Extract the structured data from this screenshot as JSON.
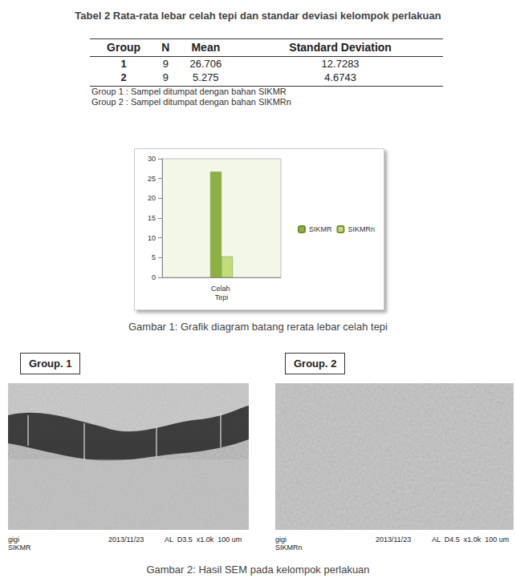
{
  "table_title": "Tabel 2  Rata-rata lebar celah tepi dan standar deviasi kelompok perlakuan",
  "table": {
    "header": [
      "Group",
      "N",
      "Mean",
      "Standard Deviation"
    ],
    "rows": [
      [
        1,
        9,
        26.706,
        12.7283
      ],
      [
        2,
        9,
        5.275,
        4.6743
      ]
    ]
  },
  "table_notes": [
    "Group 1 : Sampel ditumpat dengan bahan SIKMR",
    "Group 2 : Sampel ditumpat dengan bahan SIKMRn"
  ],
  "chart_data": {
    "type": "bar",
    "categories": [
      "Celah Tepi"
    ],
    "series": [
      {
        "name": "SIKMR",
        "color": "#8db045",
        "values": [
          26.706
        ]
      },
      {
        "name": "SIKMRn",
        "color": "#c2dc7c",
        "values": [
          5.275
        ]
      }
    ],
    "ylim": [
      0,
      30
    ],
    "yticks": [
      0,
      5,
      10,
      15,
      20,
      25,
      30
    ],
    "grid": false,
    "legend": "right"
  },
  "figure1_caption": "Gambar 1: Grafik diagram batang rerata lebar celah tepi",
  "sem": [
    {
      "label": "Group. 1",
      "footer": [
        "gigi",
        "SIKMR"
      ],
      "date": "2013/11/23",
      "info": [
        "AL",
        "D3.5",
        "x1.0k",
        "100 um"
      ]
    },
    {
      "label": "Group. 2",
      "footer": [
        "gigi",
        "SIKMRn"
      ],
      "date": "2013/11/23",
      "info": [
        "AL",
        "D4.5",
        "x1.0k",
        "100 um"
      ]
    }
  ],
  "figure2_caption": "Gambar 2: Hasil SEM pada kelompok perlakuan"
}
